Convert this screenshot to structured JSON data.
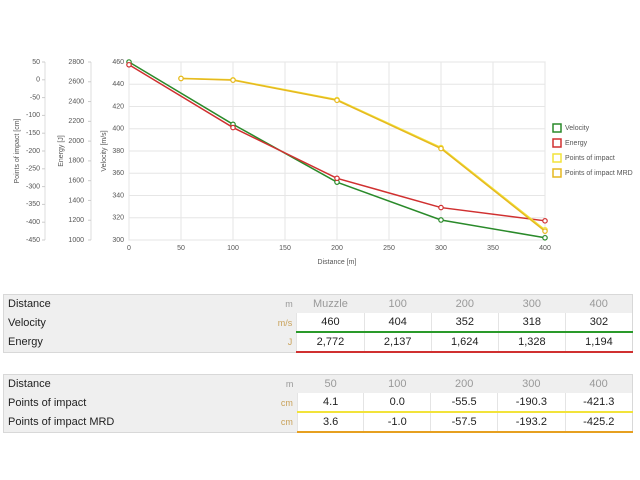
{
  "chart_data": {
    "type": "line",
    "x_label": "Distance [m]",
    "xlim": [
      0,
      400
    ],
    "xticks": [
      0,
      50,
      100,
      150,
      200,
      250,
      300,
      350,
      400
    ],
    "grid": true,
    "legend": "right",
    "y_axes": [
      {
        "label": "Points of impact [cm]",
        "lim": [
          -450,
          50
        ],
        "ticks": [
          50,
          0,
          -50,
          -100,
          -150,
          -200,
          -250,
          -300,
          -350,
          -400,
          -450
        ]
      },
      {
        "label": "Energy [J]",
        "lim": [
          1000,
          2800
        ],
        "ticks": [
          2800,
          2600,
          2400,
          2200,
          2000,
          1800,
          1600,
          1400,
          1200,
          1000
        ]
      },
      {
        "label": "Velocity [m/s]",
        "lim": [
          300,
          460
        ],
        "ticks": [
          460,
          440,
          420,
          400,
          380,
          360,
          340,
          320,
          300
        ]
      }
    ],
    "series": [
      {
        "name": "Velocity",
        "color": "#2a8a2a",
        "axis": 2,
        "x": [
          0,
          100,
          200,
          300,
          400
        ],
        "values": [
          460,
          404,
          352,
          318,
          302
        ]
      },
      {
        "name": "Energy",
        "color": "#d03030",
        "axis": 1,
        "x": [
          0,
          100,
          200,
          300,
          400
        ],
        "values": [
          2772,
          2137,
          1624,
          1328,
          1194
        ]
      },
      {
        "name": "Points of impact",
        "color": "#f2e33a",
        "axis": 0,
        "x": [
          50,
          100,
          200,
          300,
          400
        ],
        "values": [
          4.1,
          0.0,
          -55.5,
          -190.3,
          -421.3
        ]
      },
      {
        "name": "Points of impact MRD",
        "color": "#e6b820",
        "axis": 0,
        "x": [
          50,
          100,
          200,
          300,
          400
        ],
        "values": [
          3.6,
          -1.0,
          -57.5,
          -193.2,
          -425.2
        ]
      }
    ]
  },
  "tables": [
    {
      "rows": [
        {
          "label": "Distance",
          "unit": "m",
          "cells": [
            "Muzzle",
            "100",
            "200",
            "300",
            "400"
          ]
        },
        {
          "label": "Velocity",
          "unit": "m/s",
          "color": "#2a9a2a",
          "cells": [
            "460",
            "404",
            "352",
            "318",
            "302"
          ]
        },
        {
          "label": "Energy",
          "unit": "J",
          "color": "#d03030",
          "cells": [
            "2,772",
            "2,137",
            "1,624",
            "1,328",
            "1,194"
          ]
        }
      ]
    },
    {
      "rows": [
        {
          "label": "Distance",
          "unit": "m",
          "cells": [
            "50",
            "100",
            "200",
            "300",
            "400"
          ]
        },
        {
          "label": "Points of impact",
          "unit": "cm",
          "color": "#f2e33a",
          "cells": [
            "4.1",
            "0.0",
            "-55.5",
            "-190.3",
            "-421.3"
          ]
        },
        {
          "label": "Points of impact MRD",
          "unit": "cm",
          "color": "#e6a020",
          "cells": [
            "3.6",
            "-1.0",
            "-57.5",
            "-193.2",
            "-425.2"
          ]
        }
      ]
    }
  ]
}
